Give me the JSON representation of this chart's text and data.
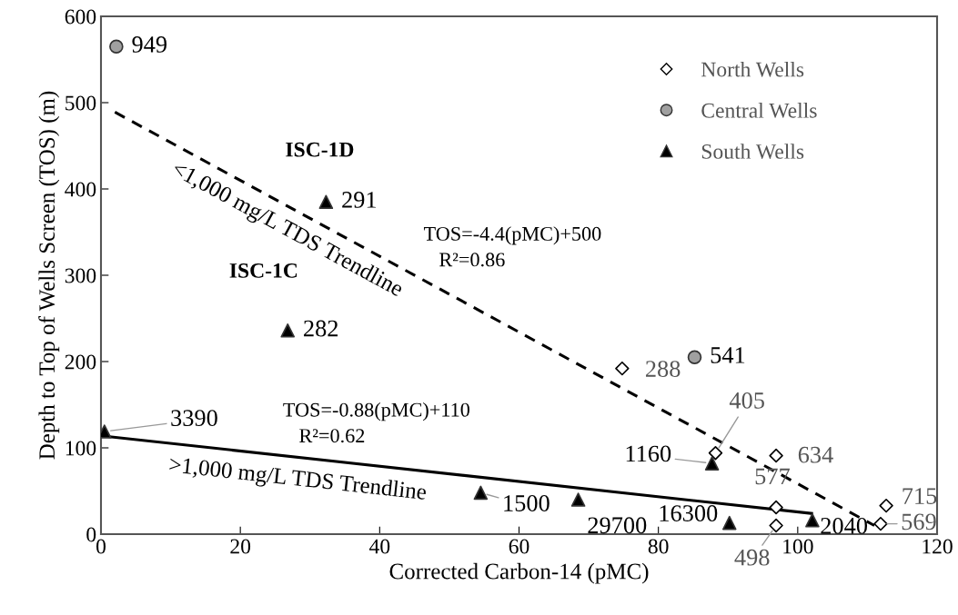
{
  "chart_data": {
    "type": "scatter",
    "xlabel": "Corrected Carbon-14 (pMC)",
    "ylabel": "Depth to Top of Wells Screen (TOS) (m)",
    "xlim": [
      0,
      120
    ],
    "ylim": [
      0,
      600
    ],
    "xticks": [
      0,
      20,
      40,
      60,
      80,
      100,
      120
    ],
    "yticks": [
      0,
      100,
      200,
      300,
      400,
      500,
      600
    ],
    "grid": false,
    "legend": "top right",
    "series": [
      {
        "name": "North Wells",
        "marker": "diamond",
        "color": "#ffffff",
        "x": [
          74.8,
          88.2,
          96.9,
          96.9,
          96.9,
          112.7,
          111.9
        ],
        "values": [
          192,
          94,
          91,
          31,
          10,
          33,
          12
        ]
      },
      {
        "name": "Central Wells",
        "marker": "circle",
        "color": "#a0a0a0",
        "x": [
          2.2,
          85.2
        ],
        "values": [
          565,
          205
        ]
      },
      {
        "name": "South Wells",
        "marker": "triangle",
        "color": "#000000",
        "x": [
          32.3,
          26.8,
          0.5,
          54.5,
          68.5,
          90.2,
          87.7,
          102.1
        ],
        "values": [
          385,
          236,
          119,
          48,
          40,
          13,
          82,
          16
        ]
      },
      {
        "name": "<1,000 mg/L TDS Trendline",
        "type": "line",
        "line_style": "dashed",
        "color": "#000000",
        "x": [
          2,
          111
        ],
        "values": [
          489,
          10
        ]
      },
      {
        "name": ">1,000 mg/L TDS Trendline",
        "type": "line",
        "line_style": "solid",
        "color": "#000000",
        "x": [
          0,
          102
        ],
        "values": [
          114,
          24
        ]
      }
    ],
    "annotations": [
      {
        "text": "949",
        "x": 2.2,
        "y": 565
      },
      {
        "text": "541",
        "x": 85.2,
        "y": 205
      },
      {
        "text": "291",
        "x": 32.3,
        "y": 385
      },
      {
        "text": "282",
        "x": 26.8,
        "y": 236
      },
      {
        "text": "ISC-1D",
        "x": 32.3,
        "y": 385
      },
      {
        "text": "ISC-1C",
        "x": 26.8,
        "y": 236
      },
      {
        "text": "3390",
        "x": 0.5,
        "y": 119
      },
      {
        "text": "1500",
        "x": 54.5,
        "y": 48
      },
      {
        "text": "29700",
        "x": 68.5,
        "y": 40
      },
      {
        "text": "16300",
        "x": 90.2,
        "y": 13
      },
      {
        "text": "1160",
        "x": 87.7,
        "y": 82
      },
      {
        "text": "2040",
        "x": 102.1,
        "y": 16
      },
      {
        "text": "288",
        "x": 74.8,
        "y": 192
      },
      {
        "text": "405",
        "x": 88.2,
        "y": 94
      },
      {
        "text": "634",
        "x": 96.9,
        "y": 91
      },
      {
        "text": "577",
        "x": 96.9,
        "y": 31
      },
      {
        "text": "498",
        "x": 96.9,
        "y": 10
      },
      {
        "text": "715",
        "x": 112.7,
        "y": 33
      },
      {
        "text": "569",
        "x": 111.9,
        "y": 12
      },
      "TOS=-4.4(pMC)+500",
      "R²=0.86",
      "TOS=-0.88(pMC)+110",
      "R²=0.62"
    ]
  }
}
